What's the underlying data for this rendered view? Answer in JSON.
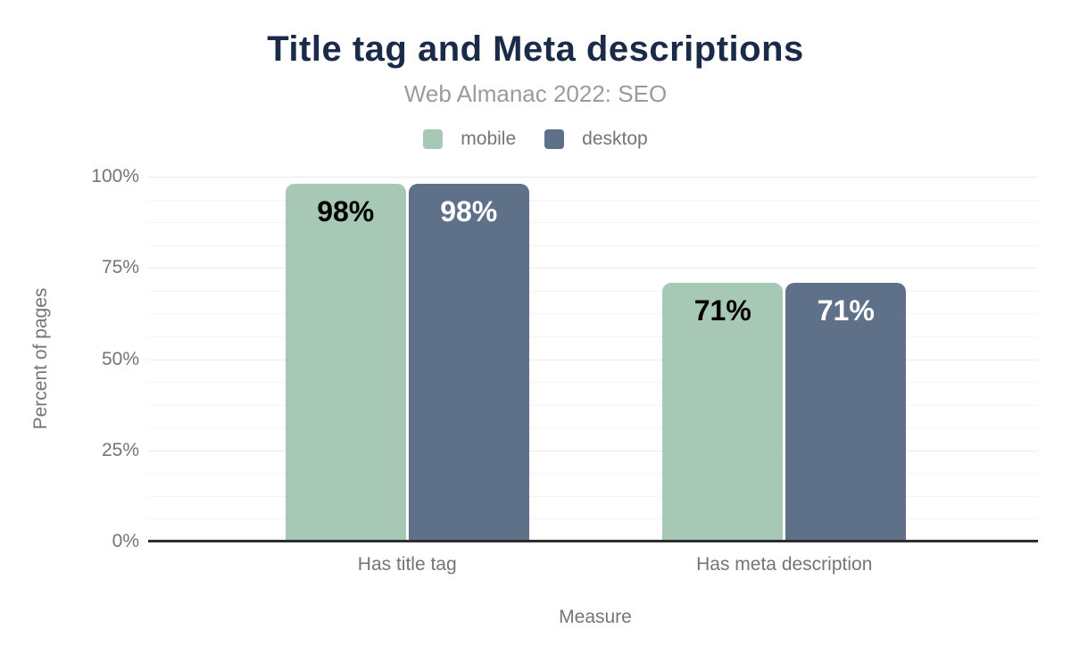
{
  "chart_data": {
    "type": "bar",
    "title": "Title tag and Meta descriptions",
    "subtitle": "Web Almanac 2022: SEO",
    "categories": [
      "Has title tag",
      "Has meta description"
    ],
    "series": [
      {
        "name": "mobile",
        "values": [
          98,
          71
        ],
        "color": "#a6c8b5",
        "value_label_color": "#000000"
      },
      {
        "name": "desktop",
        "values": [
          98,
          71
        ],
        "color": "#5e7189",
        "value_label_color": "#ffffff"
      }
    ],
    "value_labels": {
      "mobile": [
        "98%",
        "71%"
      ],
      "desktop": [
        "98%",
        "71%"
      ]
    },
    "xlabel": "Measure",
    "ylabel": "Percent of pages",
    "y_ticks": [
      {
        "value": 0,
        "label": "0%"
      },
      {
        "value": 25,
        "label": "25%"
      },
      {
        "value": 50,
        "label": "50%"
      },
      {
        "value": 75,
        "label": "75%"
      },
      {
        "value": 100,
        "label": "100%"
      }
    ],
    "ylim": [
      0,
      100
    ],
    "grid": true,
    "minor_grid_intervals": 16,
    "legend_position": "top"
  },
  "colors": {
    "background": "#ffffff",
    "title": "#1a2b49",
    "subtitle": "#9b9b9b",
    "axis_text": "#757575",
    "axis_line": "#2e2e2e",
    "grid_major": "#ececec",
    "grid_minor": "#f5f5f5"
  }
}
